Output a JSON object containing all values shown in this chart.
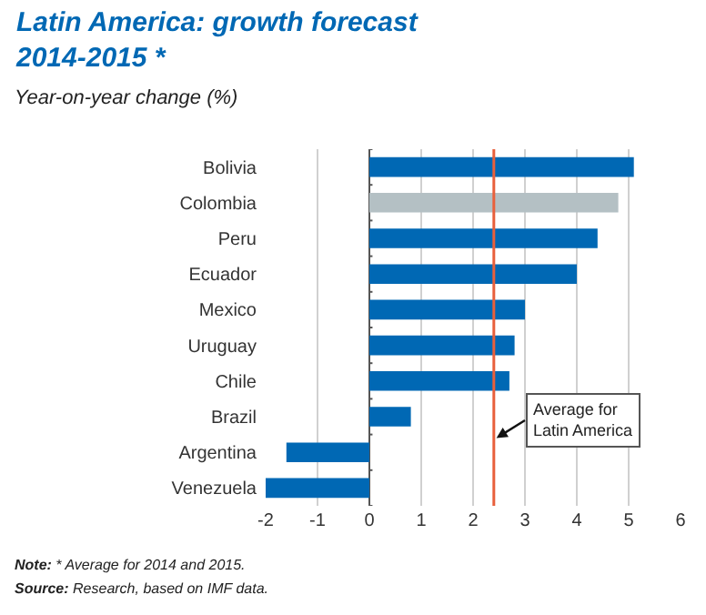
{
  "chart_data": {
    "type": "bar",
    "orientation": "horizontal",
    "title": "Latin America: growth forecast\n2014-2015 *",
    "subtitle": "Year-on-year change (%)",
    "categories": [
      "Bolivia",
      "Colombia",
      "Peru",
      "Ecuador",
      "Mexico",
      "Uruguay",
      "Chile",
      "Brazil",
      "Argentina",
      "Venezuela"
    ],
    "values": [
      5.1,
      4.8,
      4.4,
      4.0,
      3.0,
      2.8,
      2.7,
      0.8,
      -1.6,
      -2.0
    ],
    "colors": [
      "#0068b4",
      "#b4c0c4",
      "#0068b4",
      "#0068b4",
      "#0068b4",
      "#0068b4",
      "#0068b4",
      "#0068b4",
      "#0068b4",
      "#0068b4"
    ],
    "xlim": [
      -2,
      6
    ],
    "xticks": [
      -2,
      -1,
      0,
      1,
      2,
      3,
      4,
      5,
      6
    ],
    "grid": "x",
    "ref_lines": [
      {
        "axis": "x",
        "value": 2.4,
        "label": "Average for\nLatin America",
        "color": "#e8603c"
      }
    ],
    "annotations": [
      "Note: * Average for 2014 and 2015.",
      "Source: Research, based on IMF data."
    ]
  }
}
